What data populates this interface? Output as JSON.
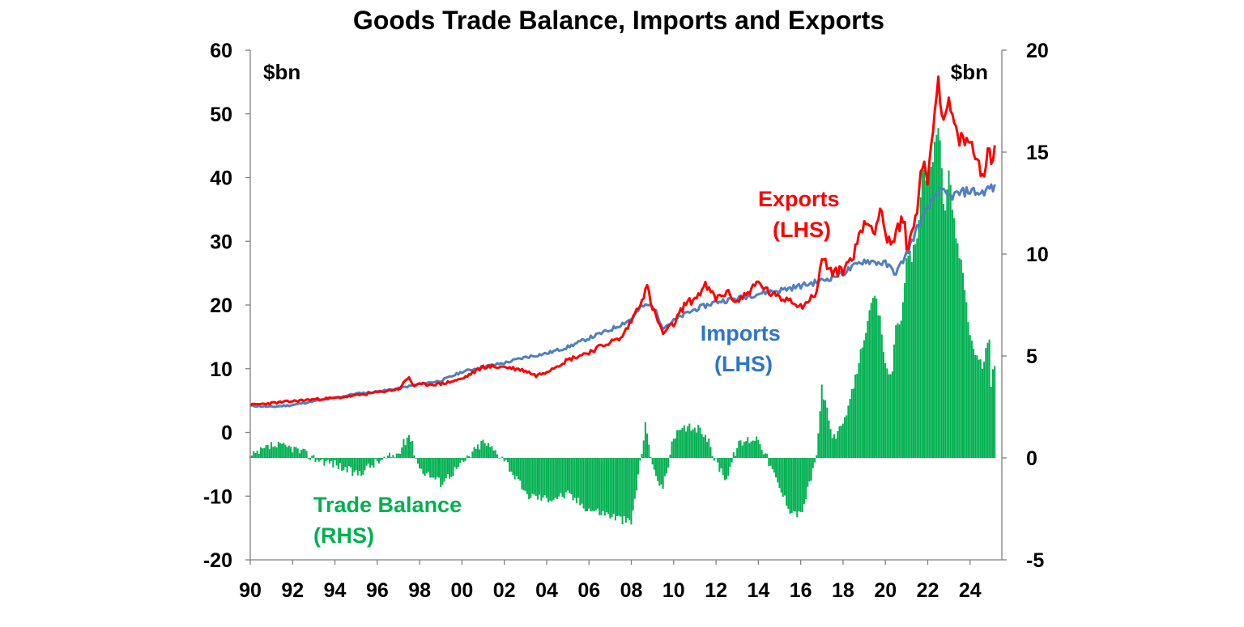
{
  "chart_data": {
    "type": "line",
    "title": "Goods Trade Balance, Imports and Exports",
    "left_axis": {
      "unit": "$bn",
      "ylim": [
        -20,
        60
      ],
      "ticks": [
        "60",
        "50",
        "40",
        "30",
        "20",
        "10",
        "0",
        "-10",
        "-20"
      ]
    },
    "right_axis": {
      "unit": "$bn",
      "ylim": [
        -5,
        20
      ],
      "ticks": [
        "20",
        "15",
        "10",
        "5",
        "0",
        "-5"
      ]
    },
    "x_axis": {
      "range": [
        1990,
        2025.5
      ],
      "tick_labels": [
        "90",
        "92",
        "94",
        "96",
        "98",
        "00",
        "02",
        "04",
        "06",
        "08",
        "10",
        "12",
        "14",
        "16",
        "18",
        "20",
        "22",
        "24"
      ]
    },
    "series": [
      {
        "name": "Exports (LHS)",
        "label_line1": "Exports",
        "label_line2": "(LHS)",
        "axis": "left",
        "type": "line",
        "color": "#ff0000",
        "x": [
          1990,
          1991,
          1992,
          1993,
          1994,
          1995,
          1996,
          1997,
          1997.5,
          1997.7,
          1998,
          1999,
          2000,
          2001,
          2002,
          2003,
          2003.5,
          2004,
          2005,
          2006,
          2007,
          2007.5,
          2008,
          2008.5,
          2008.75,
          2009,
          2009.5,
          2010,
          2010.5,
          2011,
          2011.5,
          2012,
          2012.5,
          2013,
          2013.5,
          2014,
          2014.5,
          2015,
          2015.5,
          2016,
          2016.5,
          2016.8,
          2017,
          2017.5,
          2018,
          2018.5,
          2019,
          2019.5,
          2019.8,
          2020,
          2020.3,
          2020.6,
          2020.9,
          2021,
          2021.5,
          2021.7,
          2022,
          2022.3,
          2022.5,
          2022.8,
          2023,
          2023.3,
          2023.5,
          2024,
          2024.3,
          2024.6,
          2024.9,
          2025,
          2025.2
        ],
        "y": [
          4.3,
          4.6,
          4.9,
          5.2,
          5.4,
          5.8,
          6.3,
          6.8,
          8.7,
          7.3,
          7.5,
          7.6,
          8.4,
          10.3,
          10.3,
          9.7,
          8.9,
          9.6,
          11.4,
          12.6,
          14.2,
          14.7,
          17.5,
          21.0,
          22.8,
          19.5,
          15.5,
          17.0,
          20.0,
          21.0,
          23.0,
          21.0,
          22.0,
          20.5,
          22.0,
          23.5,
          22.0,
          21.0,
          21.0,
          19.8,
          21.0,
          22.5,
          27.5,
          25.0,
          25.5,
          28.0,
          33.0,
          32.0,
          35.5,
          31.0,
          29.0,
          32.0,
          34.5,
          28.0,
          35.0,
          42.5,
          40.0,
          50.0,
          55.0,
          48.0,
          52.0,
          47.0,
          46.0,
          45.5,
          43.0,
          40.5,
          44.5,
          43.0,
          44.0
        ]
      },
      {
        "name": "Imports (LHS)",
        "label_line1": "Imports",
        "label_line2": "(LHS)",
        "axis": "left",
        "type": "line",
        "color": "#4f7fbf",
        "x": [
          1990,
          1991,
          1992,
          1993,
          1994,
          1995,
          1996,
          1997,
          1998,
          1999,
          2000,
          2001,
          2002,
          2003,
          2004,
          2005,
          2006,
          2007,
          2008,
          2008.5,
          2009,
          2009.5,
          2010,
          2010.5,
          2011,
          2012,
          2013,
          2014,
          2015,
          2016,
          2017,
          2018,
          2019,
          2020,
          2020.5,
          2021,
          2021.5,
          2022,
          2022.5,
          2023,
          2023.5,
          2024,
          2024.5,
          2025,
          2025.2
        ],
        "y": [
          4.2,
          4.0,
          4.3,
          4.9,
          5.4,
          6.1,
          6.4,
          6.9,
          7.6,
          8.1,
          9.5,
          10.3,
          10.9,
          11.8,
          12.4,
          13.4,
          14.8,
          16.1,
          17.8,
          19.8,
          20.0,
          16.5,
          17.5,
          18.5,
          19.3,
          20.5,
          21.0,
          21.8,
          22.3,
          23.0,
          23.8,
          25.0,
          27.0,
          26.5,
          25.0,
          28.0,
          32.0,
          35.0,
          38.0,
          37.0,
          37.5,
          38.0,
          37.5,
          38.5,
          38.2
        ]
      },
      {
        "name": "Trade Balance (RHS)",
        "label_line1": "Trade Balance",
        "label_line2": "(RHS)",
        "axis": "right",
        "type": "bar",
        "color": "#00b050",
        "x": [
          1990,
          1991,
          1992,
          1993,
          1994,
          1995,
          1996,
          1997,
          1997.5,
          1998,
          1999,
          2000,
          2001,
          2002,
          2003,
          2004,
          2005,
          2006,
          2007,
          2007.5,
          2008,
          2008.5,
          2008.7,
          2009,
          2009.5,
          2010,
          2010.5,
          2011,
          2011.5,
          2012,
          2012.5,
          2013,
          2013.5,
          2014,
          2014.5,
          2015,
          2015.5,
          2016,
          2016.5,
          2016.8,
          2017,
          2017.5,
          2018,
          2018.5,
          2019,
          2019.5,
          2019.8,
          2020,
          2020.3,
          2020.5,
          2020.8,
          2021,
          2021.3,
          2021.5,
          2021.8,
          2022,
          2022.3,
          2022.5,
          2022.8,
          2023,
          2023.3,
          2023.5,
          2023.8,
          2024,
          2024.3,
          2024.6,
          2024.9,
          2025,
          2025.2
        ],
        "values": [
          0.0,
          0.6,
          0.5,
          0.0,
          -0.3,
          -0.8,
          -0.2,
          0.2,
          1.2,
          -0.5,
          -1.2,
          -0.3,
          0.8,
          0.0,
          -1.8,
          -2.0,
          -1.8,
          -2.5,
          -2.8,
          -3.0,
          -3.2,
          0.3,
          1.8,
          -0.5,
          -1.5,
          1.0,
          1.4,
          1.5,
          1.2,
          -0.2,
          -1.0,
          0.6,
          0.9,
          1.0,
          -0.2,
          -1.5,
          -2.5,
          -2.8,
          -1.0,
          0.5,
          3.5,
          1.0,
          1.5,
          3.5,
          6.0,
          8.0,
          6.5,
          4.5,
          4.0,
          6.5,
          7.0,
          9.5,
          10.0,
          11.0,
          14.5,
          13.5,
          15.0,
          16.5,
          12.0,
          14.0,
          11.0,
          10.0,
          8.0,
          6.0,
          5.0,
          4.5,
          6.0,
          3.5,
          5.0
        ]
      }
    ]
  }
}
